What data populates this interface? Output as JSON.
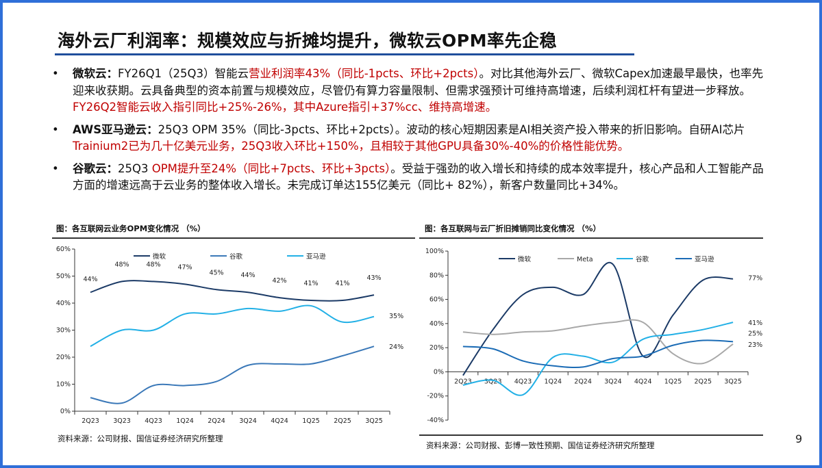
{
  "title": "海外云厂利润率：规模效应与折摊均提升，微软云OPM率先企稳",
  "bullets": [
    {
      "head": "微软云：",
      "segs": [
        "FY26Q1（25Q3）智能云",
        "营业利润率43%（同比-1pcts、环比+2pcts）",
        "。对比其他海外云厂、微软Capex加速最早最快，也率先迎来收获期。云具备典型的资本前置与规模效应，尽管仍有算力容量限制、但需求强预计可维持高增速，后续利润杠杆有望进一步释放。",
        "FY26Q2智能云收入指引同比+25%-26%，其中Azure指引+37%cc、维持高增速。"
      ]
    },
    {
      "head": "AWS亚马逊云：",
      "segs": [
        "25Q3 OPM 35%（同比-3pcts、环比+2pcts）。波动的核心短期因素是AI相关资产投入带来的折旧影响。自研AI芯片 ",
        "Trainium2已为几十亿美元业务，25Q3收入环比+150%，且相较于其他GPU具备30%-40%的价格性能优势。",
        "",
        ""
      ]
    },
    {
      "head": "谷歌云：",
      "segs": [
        "25Q3 ",
        "OPM提升至24%（同比+7pcts、环比+3pcts）",
        "。受益于强劲的收入增长和持续的成本效率提升，核心产品和人工智能产品方面的增速远高于云业务的整体收入增长。未完成订单达155亿美元（同比+ 82%），新客户数量同比+34%。",
        ""
      ]
    }
  ],
  "page_number": "9",
  "chart_data": [
    {
      "type": "line",
      "title": "图：各互联网云业务OPM变化情况 （%）",
      "source": "资料来源：公司财报、国信证券经济研究所整理",
      "categories": [
        "2Q23",
        "3Q23",
        "4Q23",
        "1Q24",
        "2Q24",
        "3Q24",
        "4Q24",
        "1Q25",
        "2Q25",
        "3Q25"
      ],
      "ylim": [
        0,
        60
      ],
      "yticks": [
        "0%",
        "10%",
        "20%",
        "30%",
        "40%",
        "50%",
        "60%"
      ],
      "legend": "top",
      "series": [
        {
          "name": "微软",
          "color": "#1b3a66",
          "values": [
            44,
            48,
            48,
            47,
            45,
            44,
            42,
            41,
            41,
            43
          ],
          "labels": [
            "44%",
            "48%",
            "48%",
            "47%",
            "45%",
            "44%",
            "42%",
            "41%",
            "41%",
            "43%"
          ]
        },
        {
          "name": "谷歌",
          "color": "#3a78b8",
          "values": [
            5,
            3,
            9.5,
            9.5,
            11,
            17,
            17.5,
            17.5,
            20.5,
            24
          ],
          "end_label": "24%"
        },
        {
          "name": "亚马逊",
          "color": "#22b0e6",
          "values": [
            24,
            30,
            30,
            36,
            36,
            38,
            37,
            39,
            33,
            35
          ],
          "end_label": "35%"
        }
      ]
    },
    {
      "type": "line",
      "title": "图：各互联网与云厂折旧摊销同比变化情况 （%）",
      "source": "资料来源：公司财报、彭博一致性预期、国信证券经济研究所整理",
      "categories": [
        "2Q23",
        "3Q23",
        "4Q23",
        "1Q24",
        "2Q24",
        "3Q24",
        "4Q24",
        "1Q25",
        "2Q25",
        "3Q25"
      ],
      "ylim": [
        -40,
        100
      ],
      "yticks": [
        "-40%",
        "-20%",
        "0%",
        "20%",
        "40%",
        "60%",
        "80%",
        "100%"
      ],
      "legend": "top",
      "series": [
        {
          "name": "微软",
          "color": "#1b3a66",
          "values": [
            -3,
            35,
            64,
            70,
            64,
            89,
            13,
            47,
            76,
            77
          ],
          "end_label": "77%"
        },
        {
          "name": "Meta",
          "color": "#a8a8a8",
          "values": [
            33,
            31,
            33,
            34,
            38,
            41,
            41,
            15,
            7,
            23
          ],
          "end_label": "23%"
        },
        {
          "name": "谷歌",
          "color": "#22b0e6",
          "values": [
            -11,
            -7,
            -19,
            12,
            13,
            8,
            27,
            31,
            35,
            41
          ],
          "end_label": "41%"
        },
        {
          "name": "亚马逊",
          "color": "#1a6bb5",
          "values": [
            21,
            19,
            9,
            5,
            4,
            11,
            13,
            22,
            26,
            25
          ],
          "end_label": "25%"
        }
      ]
    }
  ]
}
